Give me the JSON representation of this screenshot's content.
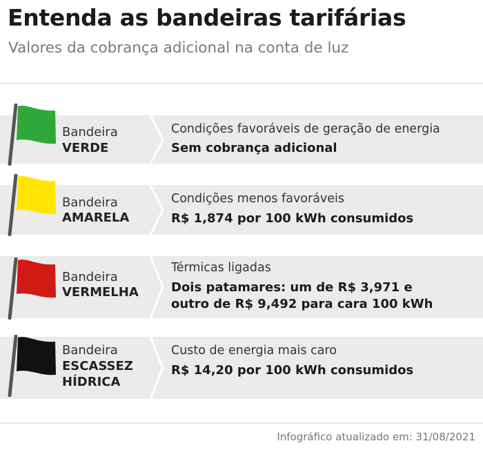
{
  "title": "Entenda as bandeiras tarifárias",
  "subtitle": "Valores da cobrança adicional na conta de luz",
  "flags": [
    {
      "label_top": "Bandeira",
      "label_lines": [
        "VERDE"
      ],
      "description": "Condições favoráveis de geração de energia",
      "value_lines": [
        "Sem cobrança adicional"
      ],
      "color": "#2fa83a"
    },
    {
      "label_top": "Bandeira",
      "label_lines": [
        "AMARELA"
      ],
      "description": "Condições menos favoráveis",
      "value_lines": [
        "R$ 1,874 por 100 kWh consumidos"
      ],
      "color": "#ffe600"
    },
    {
      "label_top": "Bandeira",
      "label_lines": [
        "VERMELHA"
      ],
      "description": "Térmicas ligadas",
      "value_lines": [
        "Dois patamares: um de R$ 3,971 e",
        "outro de R$ 9,492 para cara 100 kWh"
      ],
      "color": "#d01a16"
    },
    {
      "label_top": "Bandeira",
      "label_lines": [
        "ESCASSEZ",
        "HÍDRICA"
      ],
      "description": "Custo de energia mais caro",
      "value_lines": [
        "R$ 14,20 por 100 kWh consumidos"
      ],
      "color": "#111111"
    }
  ],
  "footer": "Infográfico atualizado em: 31/08/2021"
}
